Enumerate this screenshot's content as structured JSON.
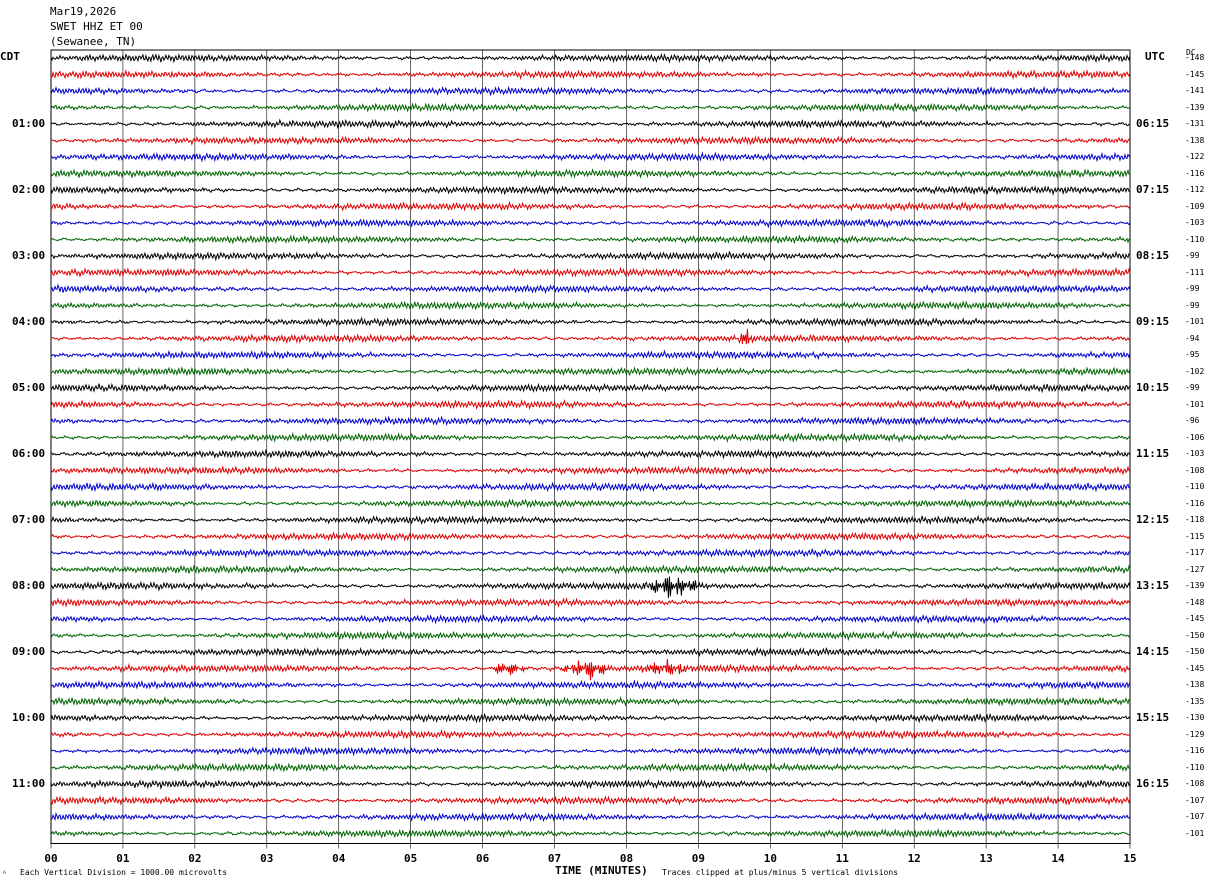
{
  "header": {
    "date": "Mar19,2026",
    "station": "SWET HHZ ET 00",
    "location": "(Sewanee, TN)"
  },
  "left_tz": "CDT",
  "right_tz": "UTC",
  "dc_header": "DC",
  "footer": {
    "left_note": "Each Vertical Division = 1000.00 microvolts",
    "center_label": "TIME (MINUTES)",
    "right_note": "Traces clipped at plus/minus 5 vertical divisions"
  },
  "colors": {
    "trace_cycle": [
      "#000000",
      "#dd0000",
      "#0000cc",
      "#006400"
    ],
    "grid": "#000000"
  },
  "chart_data": {
    "type": "line",
    "xlabel": "TIME (MINUTES)",
    "xlim": [
      0,
      15
    ],
    "x_ticks": [
      "00",
      "01",
      "02",
      "03",
      "04",
      "05",
      "06",
      "07",
      "08",
      "09",
      "10",
      "11",
      "12",
      "13",
      "14",
      "15"
    ],
    "rows_per_hour": 4,
    "row_count": 48,
    "cdt_hour_labels": [
      "",
      "01:00",
      "02:00",
      "03:00",
      "04:00",
      "05:00",
      "06:00",
      "07:00",
      "08:00",
      "09:00",
      "10:00",
      "11:00"
    ],
    "utc_hour_labels": [
      "",
      "06:15",
      "07:15",
      "08:15",
      "09:15",
      "10:15",
      "11:15",
      "12:15",
      "13:15",
      "14:15",
      "15:15",
      "16:15"
    ],
    "dc_offsets": [
      -148,
      -145,
      -141,
      -139,
      -131,
      -138,
      -122,
      -116,
      -112,
      -109,
      -103,
      -110,
      -99,
      -111,
      -99,
      -99,
      -101,
      -94,
      -95,
      -102,
      -99,
      -101,
      -96,
      -106,
      -103,
      -108,
      -110,
      -116,
      -118,
      -115,
      -117,
      -127,
      -139,
      -148,
      -145,
      -150,
      -150,
      -145,
      -138,
      -135,
      -130,
      -129,
      -116,
      -110,
      -108,
      -107,
      -107,
      -101
    ],
    "events": [
      {
        "row": 17,
        "minute": 9.65,
        "duration_min": 0.15,
        "amplitude": 2.2
      },
      {
        "row": 32,
        "minute": 8.65,
        "duration_min": 0.5,
        "amplitude": 2.8
      },
      {
        "row": 37,
        "minute": 6.35,
        "duration_min": 0.3,
        "amplitude": 1.8
      },
      {
        "row": 37,
        "minute": 7.45,
        "duration_min": 0.4,
        "amplitude": 2.6
      },
      {
        "row": 37,
        "minute": 8.55,
        "duration_min": 0.4,
        "amplitude": 2.0
      }
    ]
  }
}
